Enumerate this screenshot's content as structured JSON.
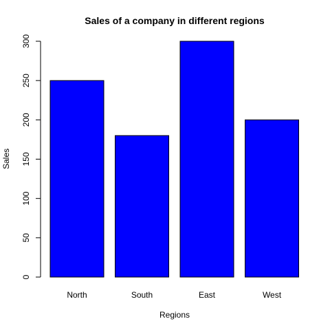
{
  "chart_data": {
    "type": "bar",
    "title": "Sales of a company in different regions",
    "xlabel": "Regions",
    "ylabel": "Sales",
    "categories": [
      "North",
      "South",
      "East",
      "West"
    ],
    "values": [
      250,
      180,
      300,
      200
    ],
    "ylim": [
      0,
      300
    ],
    "yticks": [
      "0",
      "50",
      "100",
      "150",
      "200",
      "250",
      "300"
    ],
    "grid": false,
    "legend": "none",
    "bar_color": "#0000ff",
    "bar_edge_color": "#000000"
  }
}
